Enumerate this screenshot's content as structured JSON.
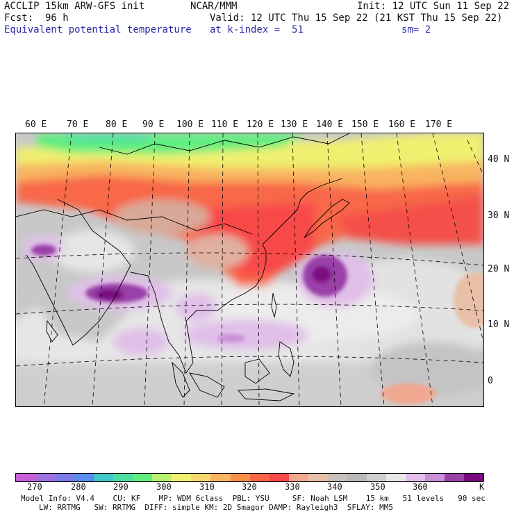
{
  "header": {
    "model_line": "ACCLIP 15km ARW-GFS init",
    "center": "NCAR/MMM",
    "init": "Init: 12 UTC Sun 11 Sep 22",
    "fcst": "Fcst:  96 h",
    "valid": "Valid: 12 UTC Thu 15 Sep 22 (21 KST Thu 15 Sep 22)",
    "field": "Equivalent potential temperature",
    "level": "at k-index =  51",
    "smooth": "sm= 2"
  },
  "map": {
    "lon_labels": [
      "60 E",
      "70 E",
      "80 E",
      "90 E",
      "100 E",
      "110 E",
      "120 E",
      "130 E",
      "140 E",
      "150 E",
      "160 E",
      "170 E"
    ],
    "lat_labels": [
      "40 N",
      "30 N",
      "20 N",
      "10 N",
      "0"
    ]
  },
  "colorbar": {
    "colors": [
      "#c760d8",
      "#a070e0",
      "#7c7ce8",
      "#5a8ef0",
      "#3ec8c8",
      "#4ce0a0",
      "#60ee80",
      "#b8f070",
      "#f0f070",
      "#f8d870",
      "#f8b460",
      "#f89048",
      "#f86848",
      "#f84848",
      "#f0a890",
      "#e8c0a8",
      "#c8c0b8",
      "#b8b8b8",
      "#d0d0d0",
      "#e8e8e8",
      "#e0c0e8",
      "#c890d8",
      "#9a40a8",
      "#7a0880"
    ],
    "tick_labels": [
      "270",
      "280",
      "290",
      "300",
      "310",
      "320",
      "330",
      "340",
      "350",
      "360"
    ],
    "unit": "K"
  },
  "footer": {
    "line1": "Model Info: V4.4    CU: KF    MP: WDM 6class  PBL: YSU     SF: Noah LSM    15 km   51 levels   90 sec",
    "line2": "LW: RRTMG   SW: RRTMG  DIFF: simple KM: 2D Smagor DAMP: Rayleigh3  SFLAY: MM5"
  }
}
